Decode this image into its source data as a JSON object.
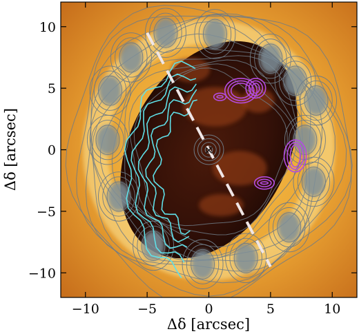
{
  "chart_data": {
    "type": "heatmap",
    "xlabel": "Δδ [arcsec]",
    "ylabel": "Δδ [arcsec]",
    "xlim": [
      -12,
      12
    ],
    "ylim": [
      -12,
      12
    ],
    "xticks": [
      -10,
      -5,
      0,
      5,
      10
    ],
    "yticks": [
      -10,
      -5,
      0,
      5,
      10
    ],
    "xtick_labels": [
      "−10",
      "−5",
      "0",
      "5",
      "10"
    ],
    "ytick_labels": [
      "−10",
      "−5",
      "0",
      "5",
      "10"
    ],
    "grid": false,
    "colormap_background": "yellow-orange-brown",
    "center_marker": {
      "x": 0,
      "y": 0,
      "symbol": "×"
    },
    "dashed_line": {
      "x1": -5,
      "y1": 9.5,
      "x2": 5,
      "y2": -9.5,
      "color": "#f0e6e6"
    },
    "inner_ellipse": {
      "cx": 0,
      "cy": 0,
      "rx": 6.4,
      "ry": 9.4,
      "angle_deg": -28
    },
    "ring_clumps": [
      {
        "x": -3.5,
        "y": 9.5
      },
      {
        "x": 0.5,
        "y": 9.4
      },
      {
        "x": 5.0,
        "y": 7.4
      },
      {
        "x": 7.0,
        "y": 5.6
      },
      {
        "x": 8.7,
        "y": 4.0
      },
      {
        "x": 7.8,
        "y": 0.8
      },
      {
        "x": 8.5,
        "y": -2.6
      },
      {
        "x": 6.5,
        "y": -6.3
      },
      {
        "x": 3.0,
        "y": -8.8
      },
      {
        "x": -0.5,
        "y": -9.3
      },
      {
        "x": -4.5,
        "y": -7.8
      },
      {
        "x": -7.3,
        "y": -3.8
      },
      {
        "x": -8.2,
        "y": 0.8
      },
      {
        "x": -8.0,
        "y": 4.8
      },
      {
        "x": -6.3,
        "y": 7.5
      }
    ],
    "contour_colors": {
      "ring": "#6e7b86",
      "cyan": "#5fe0e8",
      "magenta": "#b44be0"
    }
  }
}
